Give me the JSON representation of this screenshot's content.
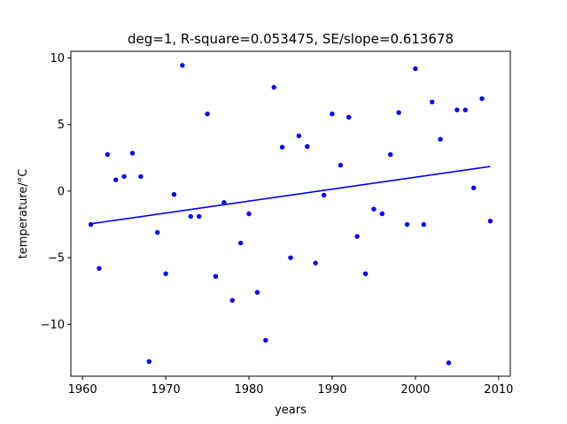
{
  "chart_data": {
    "type": "scatter",
    "title": "deg=1, R-square=0.053475, SE/slope=0.613678",
    "xlabel": "years",
    "ylabel": "temperature/°C",
    "xlim": [
      1958.6,
      2011.4
    ],
    "ylim": [
      -13.9,
      10.5
    ],
    "xticks": [
      1960,
      1970,
      1980,
      1990,
      2000,
      2010
    ],
    "yticks": [
      10,
      5,
      0,
      -5,
      -10
    ],
    "ytick_labels": [
      "10",
      "5",
      "0",
      "−5",
      "−10"
    ],
    "grid": false,
    "colors": {
      "points": "#0000ff",
      "fit": "#0000ff"
    },
    "series": [
      {
        "kind": "points",
        "x": [
          1961,
          1962,
          1963,
          1964,
          1965,
          1966,
          1967,
          1968,
          1969,
          1970,
          1971,
          1972,
          1973,
          1974,
          1975,
          1976,
          1977,
          1978,
          1979,
          1980,
          1981,
          1982,
          1983,
          1984,
          1985,
          1986,
          1987,
          1988,
          1989,
          1990,
          1991,
          1992,
          1993,
          1994,
          1995,
          1996,
          1997,
          1998,
          1999,
          2000,
          2001,
          2002,
          2003,
          2004,
          2005,
          2006,
          2007,
          2008,
          2009
        ],
        "y": [
          -2.5,
          -5.8,
          2.75,
          0.85,
          1.1,
          2.85,
          1.1,
          -12.8,
          -3.1,
          -6.2,
          -0.25,
          9.45,
          -1.9,
          -1.9,
          5.8,
          -6.4,
          -0.85,
          -8.2,
          -3.9,
          -1.7,
          -7.6,
          -11.2,
          7.8,
          3.3,
          -5.0,
          4.15,
          3.35,
          -5.4,
          -0.3,
          5.8,
          1.95,
          5.55,
          -3.4,
          -6.2,
          -1.35,
          -1.7,
          2.75,
          5.9,
          -2.5,
          9.2,
          -2.5,
          6.7,
          3.9,
          -12.9,
          6.1,
          6.1,
          0.25,
          6.95,
          -2.25
        ]
      },
      {
        "kind": "line",
        "x": [
          1961,
          2009
        ],
        "y": [
          -2.45,
          1.85
        ]
      }
    ]
  }
}
